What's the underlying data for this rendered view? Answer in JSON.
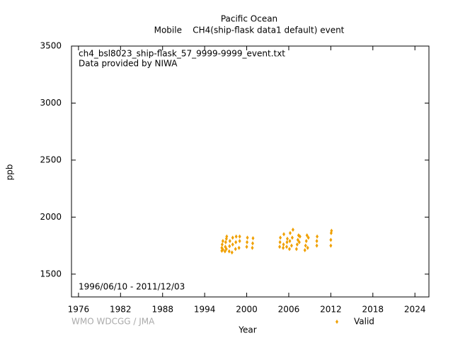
{
  "chart_data": {
    "type": "scatter",
    "title": "Pacific Ocean",
    "subtitle": "Mobile    CH4(ship-flask data1 default) event",
    "annotations": [
      "ch4_bsl8023_ship-flask_57_9999-9999_event.txt",
      "Data provided by NIWA",
      "1996/06/10 - 2011/12/03"
    ],
    "credit": "WMO WDCGG / JMA",
    "x_label": "Year",
    "y_label": "ppb",
    "xlim": [
      1975,
      2026
    ],
    "xticks": [
      1976,
      1982,
      1988,
      1994,
      2000,
      2006,
      2012,
      2018,
      2024
    ],
    "ylim": [
      1300,
      3500
    ],
    "yticks": [
      1500,
      2000,
      2500,
      3000,
      3500
    ],
    "legend_position": "bottom-right",
    "series": [
      {
        "name": "Valid",
        "color": "#f0a000",
        "x": [
          1996.45,
          1996.45,
          1996.5,
          1996.6,
          1996.6,
          1996.9,
          1996.95,
          1997.0,
          1997.1,
          1997.1,
          1997.15,
          1997.5,
          1997.55,
          1997.6,
          1997.9,
          1998.0,
          1998.0,
          1998.4,
          1998.45,
          1998.5,
          1998.9,
          1999.0,
          1999.0,
          2000.0,
          2000.05,
          2000.1,
          2000.8,
          2000.85,
          2000.9,
          2004.7,
          2004.75,
          2004.8,
          2005.2,
          2005.25,
          2005.3,
          2005.7,
          2005.75,
          2005.8,
          2006.1,
          2006.15,
          2006.2,
          2006.4,
          2006.5,
          2006.6,
          2007.1,
          2007.2,
          2007.3,
          2007.4,
          2007.5,
          2007.6,
          2008.3,
          2008.4,
          2008.5,
          2008.6,
          2008.7,
          2008.8,
          2010.0,
          2010.0,
          2010.05,
          2012.0,
          2012.0,
          2012.05,
          2012.1
        ],
        "values": [
          1705,
          1730,
          1760,
          1790,
          1715,
          1700,
          1740,
          1780,
          1810,
          1720,
          1830,
          1700,
          1745,
          1790,
          1690,
          1760,
          1820,
          1720,
          1780,
          1830,
          1730,
          1790,
          1830,
          1740,
          1780,
          1820,
          1730,
          1770,
          1815,
          1740,
          1780,
          1820,
          1730,
          1760,
          1850,
          1740,
          1780,
          1810,
          1720,
          1790,
          1860,
          1750,
          1820,
          1890,
          1720,
          1760,
          1800,
          1840,
          1780,
          1830,
          1710,
          1750,
          1790,
          1840,
          1730,
          1820,
          1750,
          1790,
          1830,
          1750,
          1800,
          1860,
          1880
        ]
      }
    ]
  }
}
